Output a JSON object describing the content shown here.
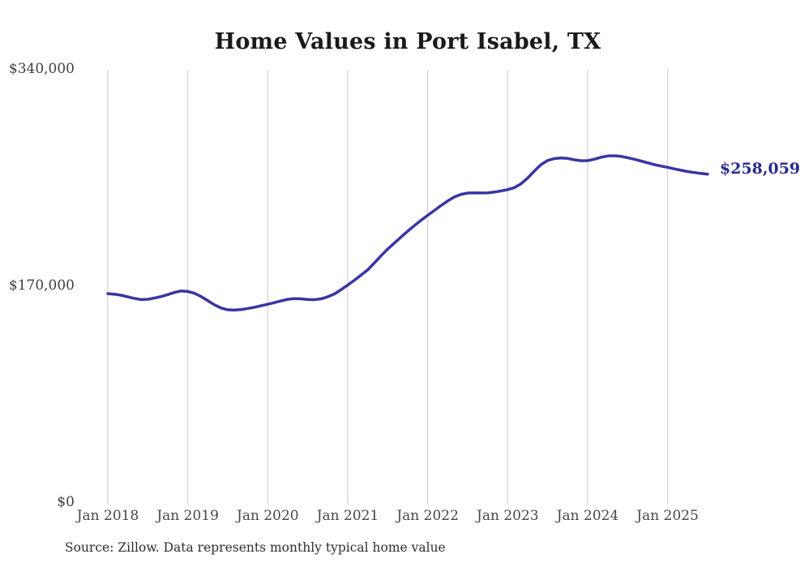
{
  "title": "Home Values in Port Isabel, TX",
  "source_note": "Source: Zillow. Data represents monthly typical home value",
  "end_label": "$258,059",
  "colors": {
    "line": "#3a35a3",
    "end_label": "#2b2a8c",
    "grid": "#c9c9c9",
    "title_text": "#1a1a1a",
    "tick_text": "#474747",
    "background": "#ffffff"
  },
  "chart_data": {
    "type": "line",
    "title": "Home Values in Port Isabel, TX",
    "xlabel": "",
    "ylabel": "",
    "ylim": [
      0,
      340000
    ],
    "grid": "vertical-only",
    "legend": "none",
    "last_value": 258059,
    "y_ticks": [
      0,
      170000,
      340000
    ],
    "y_tick_labels": [
      "$0",
      "$170,000",
      "$340,000"
    ],
    "x_tick_labels": [
      "Jan 2018",
      "Jan 2019",
      "Jan 2020",
      "Jan 2021",
      "Jan 2022",
      "Jan 2023",
      "Jan 2024",
      "Jan 2025"
    ],
    "x_tick_indices": [
      0,
      12,
      24,
      36,
      48,
      60,
      72,
      84
    ],
    "x": [
      "2018-01",
      "2018-02",
      "2018-03",
      "2018-04",
      "2018-05",
      "2018-06",
      "2018-07",
      "2018-08",
      "2018-09",
      "2018-10",
      "2018-11",
      "2018-12",
      "2019-01",
      "2019-02",
      "2019-03",
      "2019-04",
      "2019-05",
      "2019-06",
      "2019-07",
      "2019-08",
      "2019-09",
      "2019-10",
      "2019-11",
      "2019-12",
      "2020-01",
      "2020-02",
      "2020-03",
      "2020-04",
      "2020-05",
      "2020-06",
      "2020-07",
      "2020-08",
      "2020-09",
      "2020-10",
      "2020-11",
      "2020-12",
      "2021-01",
      "2021-02",
      "2021-03",
      "2021-04",
      "2021-05",
      "2021-06",
      "2021-07",
      "2021-08",
      "2021-09",
      "2021-10",
      "2021-11",
      "2021-12",
      "2022-01",
      "2022-02",
      "2022-03",
      "2022-04",
      "2022-05",
      "2022-06",
      "2022-07",
      "2022-08",
      "2022-09",
      "2022-10",
      "2022-11",
      "2022-12",
      "2023-01",
      "2023-02",
      "2023-03",
      "2023-04",
      "2023-05",
      "2023-06",
      "2023-07",
      "2023-08",
      "2023-09",
      "2023-10",
      "2023-11",
      "2023-12",
      "2024-01",
      "2024-02",
      "2024-03",
      "2024-04",
      "2024-05",
      "2024-06",
      "2024-07",
      "2024-08",
      "2024-09",
      "2024-10",
      "2024-11",
      "2024-12",
      "2025-01",
      "2025-02",
      "2025-03",
      "2025-04",
      "2025-05",
      "2025-06",
      "2025-07"
    ],
    "values": [
      164300,
      163800,
      163000,
      161800,
      160500,
      159600,
      159800,
      160800,
      162000,
      163500,
      165200,
      166400,
      166000,
      164500,
      162000,
      158800,
      155500,
      153000,
      151600,
      151400,
      151800,
      152600,
      153600,
      154800,
      155900,
      157200,
      158600,
      159800,
      160400,
      160200,
      159700,
      159500,
      160200,
      161800,
      164000,
      167400,
      171000,
      174800,
      178800,
      183000,
      188400,
      194000,
      199200,
      204000,
      208700,
      213300,
      217600,
      221800,
      225800,
      229500,
      233400,
      237000,
      240200,
      242200,
      243200,
      243400,
      243300,
      243400,
      244000,
      244900,
      245900,
      247500,
      250500,
      255000,
      260500,
      265500,
      268800,
      270300,
      270800,
      270400,
      269300,
      268600,
      268700,
      269800,
      271300,
      272300,
      272500,
      272000,
      271000,
      269800,
      268400,
      267000,
      265600,
      264400,
      263400,
      262200,
      261100,
      260100,
      259300,
      258600,
      258059
    ]
  }
}
